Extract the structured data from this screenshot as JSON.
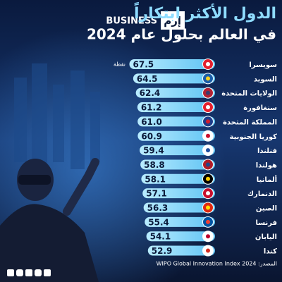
{
  "header": {
    "brand": "إرم",
    "brand_en": "BUSINESS",
    "title": "الدول الأكثر ابتكاراً",
    "subtitle": "في العالم بحلول عام 2024"
  },
  "chart_data": {
    "type": "bar",
    "orientation": "horizontal",
    "unit": "نقطة",
    "categories": [
      "سويسرا",
      "السويد",
      "الولايات المتحدة",
      "سنغافورة",
      "المملكة المتحدة",
      "كوريا الجنوبية",
      "فنلندا",
      "هولندا",
      "ألمانيا",
      "الدنمارك",
      "الصين",
      "فرنسا",
      "اليابان",
      "كندا"
    ],
    "values": [
      67.5,
      64.5,
      62.4,
      61.2,
      61.0,
      60.9,
      59.4,
      58.8,
      58.1,
      57.1,
      56.3,
      55.4,
      54.1,
      52.9
    ],
    "value_labels": [
      "67.5",
      "64.5",
      "62.4",
      "61.2",
      "61.0",
      "60.9",
      "59.4",
      "58.8",
      "58.1",
      "57.1",
      "56.3",
      "55.4",
      "54.1",
      "52.9"
    ],
    "color": "#80d4f8"
  },
  "footer": {
    "source": "المصدر: WIPO Global Innovation Index 2024"
  }
}
